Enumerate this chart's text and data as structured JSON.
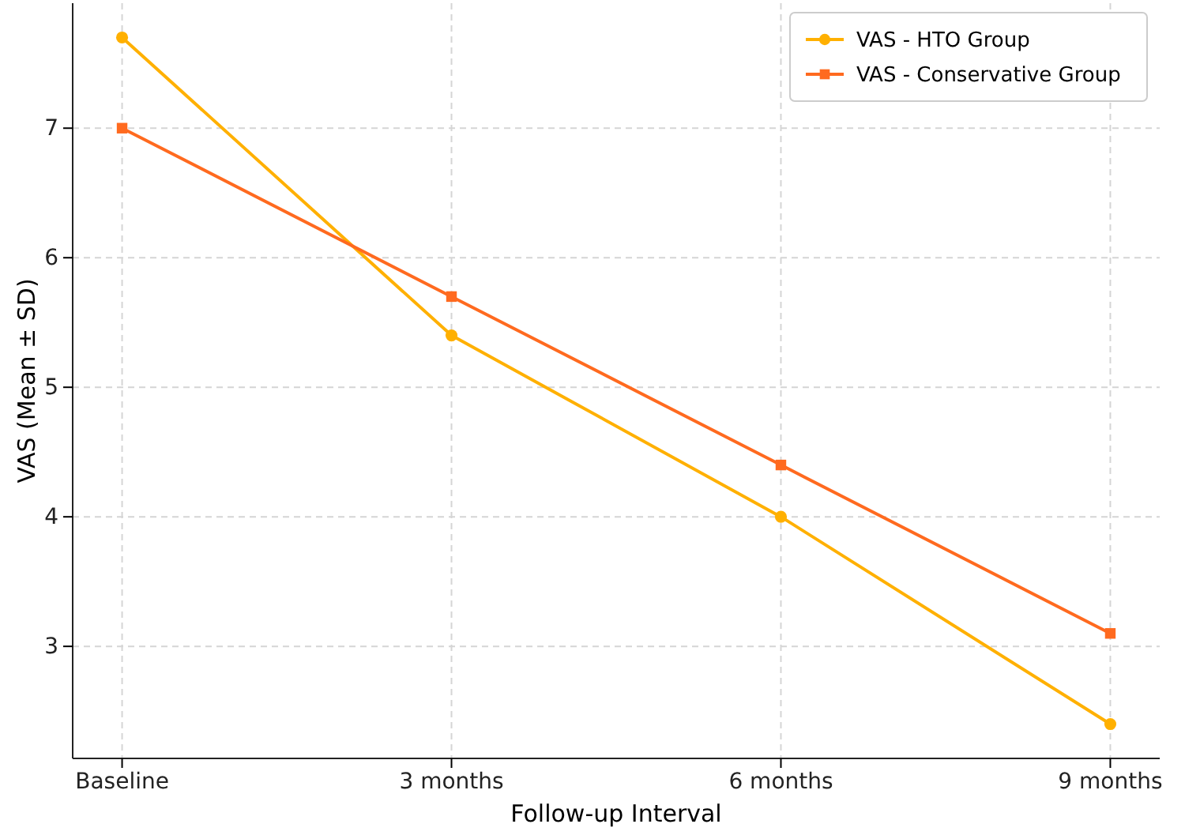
{
  "chart_data": {
    "type": "line",
    "xlabel": "Follow-up Interval",
    "ylabel": "VAS (Mean ± SD)",
    "categories": [
      "Baseline",
      "3 months",
      "6 months",
      "9 months"
    ],
    "series": [
      {
        "name": "VAS - HTO Group",
        "color": "#ffb000",
        "marker": "circle",
        "values": [
          7.7,
          5.4,
          4.0,
          2.4
        ]
      },
      {
        "name": "VAS - Conservative Group",
        "color": "#ff6a1f",
        "marker": "square",
        "values": [
          7.0,
          5.7,
          4.4,
          3.1
        ]
      }
    ],
    "ylim": [
      2.135,
      7.965
    ],
    "yticks": [
      3,
      4,
      5,
      6,
      7
    ],
    "grid": true,
    "legend": "top right"
  }
}
